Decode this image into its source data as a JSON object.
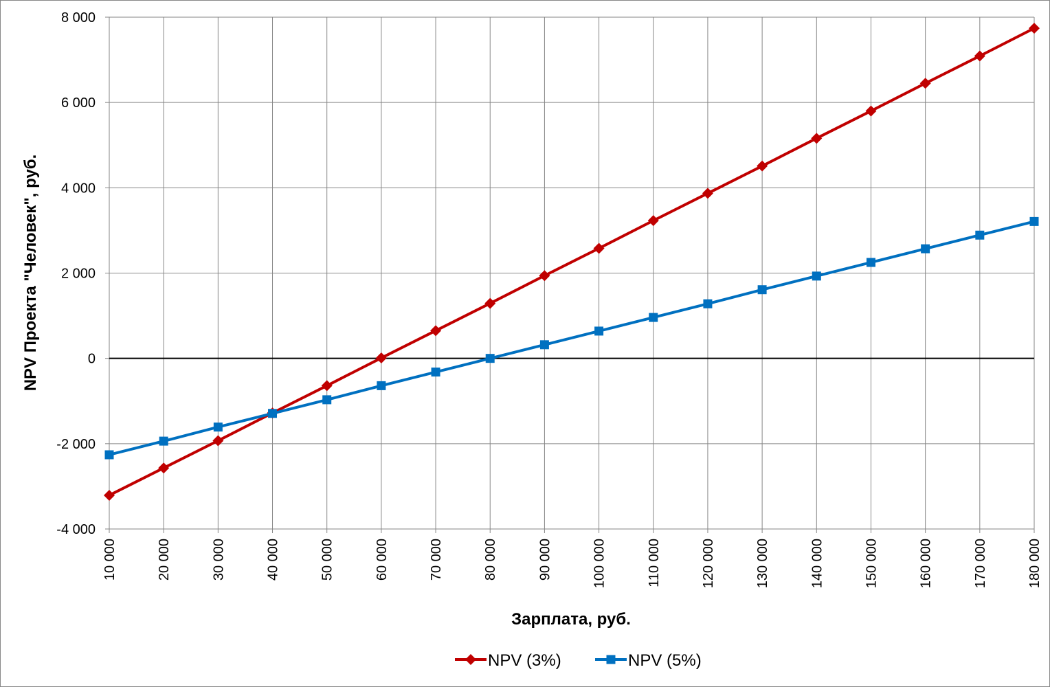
{
  "chart_data": {
    "type": "line",
    "xlabel": "Зарплата, руб.",
    "ylabel": "NPV Проекта \"Человек\", руб.",
    "categories": [
      "10 000",
      "20 000",
      "30 000",
      "40 000",
      "50 000",
      "60 000",
      "70 000",
      "80 000",
      "90 000",
      "100 000",
      "110 000",
      "120 000",
      "130 000",
      "140 000",
      "150 000",
      "160 000",
      "170 000",
      "180 000"
    ],
    "x": [
      10000,
      20000,
      30000,
      40000,
      50000,
      60000,
      70000,
      80000,
      90000,
      100000,
      110000,
      120000,
      130000,
      140000,
      150000,
      160000,
      170000,
      180000
    ],
    "ylim": [
      -4000,
      8000
    ],
    "yticks": [
      -4000,
      -2000,
      0,
      2000,
      4000,
      6000,
      8000
    ],
    "ytick_labels": [
      "-4 000",
      "-2 000",
      "0",
      "2 000",
      "4 000",
      "6 000",
      "8 000"
    ],
    "grid": true,
    "legend_position": "bottom",
    "series": [
      {
        "name": "NPV (3%)",
        "color": "#C00000",
        "marker": "diamond",
        "values": [
          -3210,
          -2570,
          -1930,
          -1280,
          -640,
          10,
          650,
          1290,
          1940,
          2580,
          3230,
          3870,
          4510,
          5160,
          5800,
          6450,
          7090,
          7740
        ]
      },
      {
        "name": "NPV (5%)",
        "color": "#0070C0",
        "marker": "square",
        "values": [
          -2260,
          -1940,
          -1610,
          -1290,
          -970,
          -640,
          -320,
          0,
          320,
          640,
          960,
          1280,
          1610,
          1930,
          2250,
          2570,
          2890,
          3210
        ]
      }
    ]
  }
}
